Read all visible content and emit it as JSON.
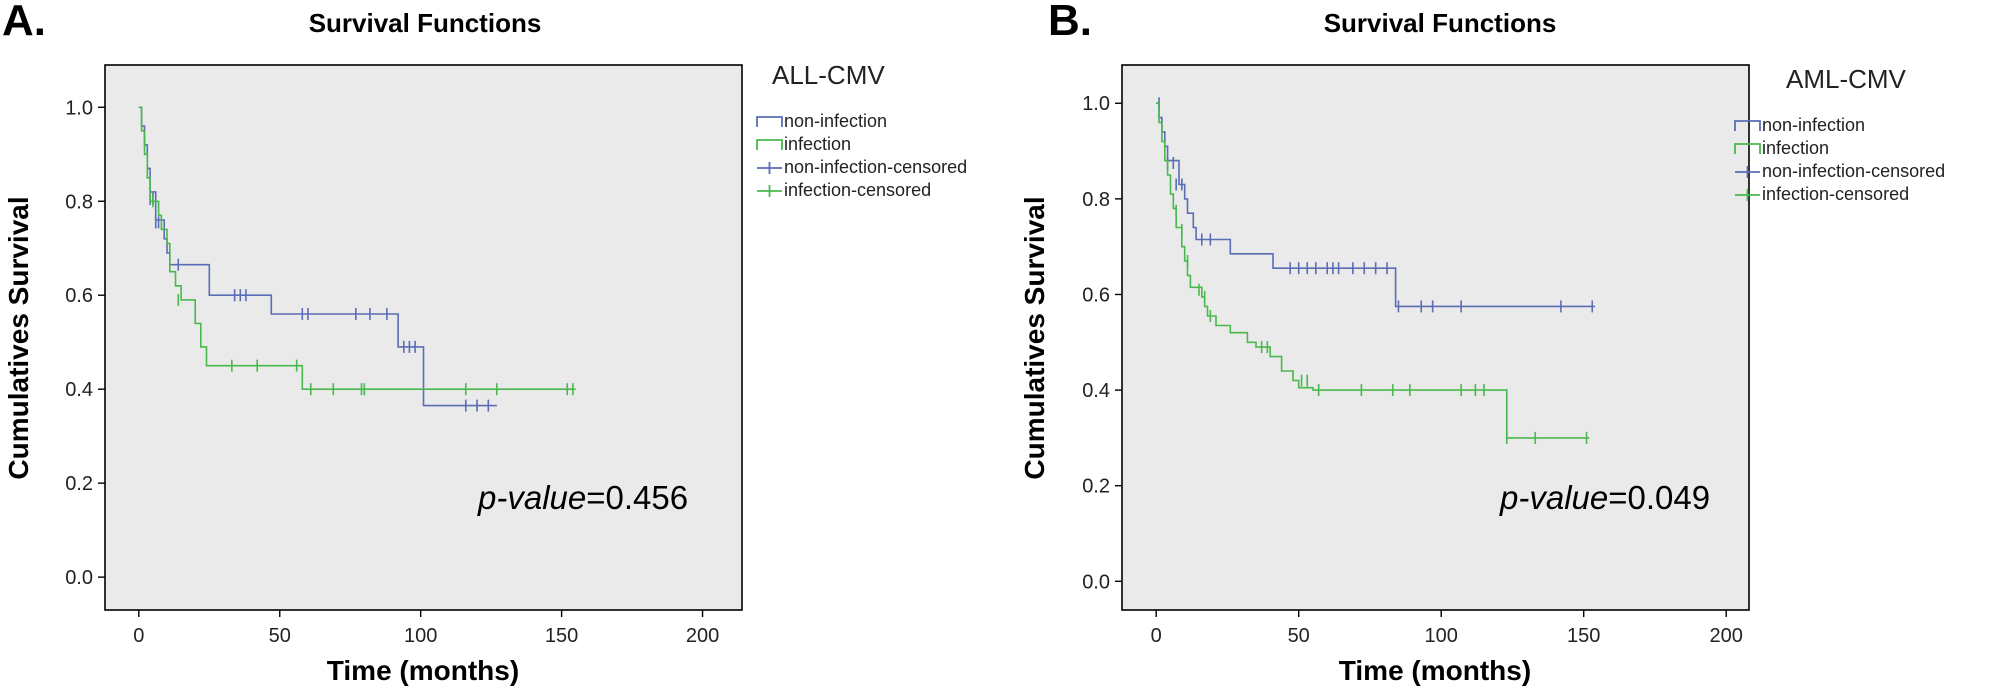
{
  "chart_data": [
    {
      "panel_label": "A.",
      "type": "line",
      "subtype": "kaplan-meier step",
      "title": "Survival Functions",
      "xlabel": "Time (months)",
      "ylabel": "Cumulatives Survival",
      "xlim": [
        -12,
        214
      ],
      "ylim": [
        -0.07,
        1.09
      ],
      "xticks": [
        0,
        50,
        100,
        150,
        200
      ],
      "xtick_labels": [
        "0",
        "50",
        "100",
        "150",
        "200"
      ],
      "yticks": [
        0.0,
        0.2,
        0.4,
        0.6,
        0.8,
        1.0
      ],
      "ytick_labels": [
        "0.0",
        "0.2",
        "0.4",
        "0.6",
        "0.8",
        "1.0"
      ],
      "grid": false,
      "plot_background": "#eaeaea",
      "legend": {
        "title": "ALL-CMV",
        "position": "right",
        "entries": [
          {
            "label": "non-infection",
            "kind": "line",
            "color": "#5a6db5"
          },
          {
            "label": "infection",
            "kind": "line",
            "color": "#49b94e"
          },
          {
            "label": "non-infection-censored",
            "kind": "censor",
            "color": "#5a6db5"
          },
          {
            "label": "infection-censored",
            "kind": "censor",
            "color": "#49b94e"
          }
        ]
      },
      "annotation": {
        "prefix": "p-value",
        "value": "=0.456"
      },
      "series": [
        {
          "name": "non-infection",
          "color": "#5a6db5",
          "steps": [
            [
              0,
              1.0
            ],
            [
              1,
              0.96
            ],
            [
              2,
              0.92
            ],
            [
              3,
              0.87
            ],
            [
              4,
              0.82
            ],
            [
              6,
              0.76
            ],
            [
              9,
              0.72
            ],
            [
              10,
              0.69
            ],
            [
              11,
              0.665
            ],
            [
              25,
              0.6
            ],
            [
              47,
              0.56
            ],
            [
              92,
              0.49
            ],
            [
              101,
              0.365
            ],
            [
              127,
              0.365
            ]
          ],
          "censored": [
            [
              4,
              0.805
            ],
            [
              5,
              0.805
            ],
            [
              6,
              0.755
            ],
            [
              7,
              0.755
            ],
            [
              14,
              0.665
            ],
            [
              34,
              0.6
            ],
            [
              36,
              0.6
            ],
            [
              38,
              0.6
            ],
            [
              58,
              0.56
            ],
            [
              60,
              0.56
            ],
            [
              77,
              0.56
            ],
            [
              82,
              0.56
            ],
            [
              88,
              0.56
            ],
            [
              94,
              0.49
            ],
            [
              96,
              0.49
            ],
            [
              98,
              0.49
            ],
            [
              116,
              0.365
            ],
            [
              120,
              0.365
            ],
            [
              124,
              0.365
            ]
          ]
        },
        {
          "name": "infection",
          "color": "#49b94e",
          "steps": [
            [
              0,
              1.0
            ],
            [
              1,
              0.95
            ],
            [
              2,
              0.9
            ],
            [
              3,
              0.85
            ],
            [
              4,
              0.8
            ],
            [
              7,
              0.77
            ],
            [
              8,
              0.74
            ],
            [
              10,
              0.71
            ],
            [
              11,
              0.65
            ],
            [
              13,
              0.62
            ],
            [
              15,
              0.59
            ],
            [
              20,
              0.54
            ],
            [
              22,
              0.49
            ],
            [
              24,
              0.45
            ],
            [
              58,
              0.4
            ],
            [
              155,
              0.4
            ]
          ],
          "censored": [
            [
              5,
              0.8
            ],
            [
              14,
              0.59
            ],
            [
              33,
              0.45
            ],
            [
              42,
              0.45
            ],
            [
              56,
              0.45
            ],
            [
              61,
              0.4
            ],
            [
              69,
              0.4
            ],
            [
              79,
              0.4
            ],
            [
              80,
              0.4
            ],
            [
              116,
              0.4
            ],
            [
              127,
              0.4
            ],
            [
              152,
              0.4
            ],
            [
              154,
              0.4
            ]
          ]
        }
      ]
    },
    {
      "panel_label": "B.",
      "type": "line",
      "subtype": "kaplan-meier step",
      "title": "Survival Functions",
      "xlabel": "Time (months)",
      "ylabel": "Cumulatives Survival",
      "xlim": [
        -12,
        208
      ],
      "ylim": [
        -0.06,
        1.08
      ],
      "xticks": [
        0,
        50,
        100,
        150,
        200
      ],
      "xtick_labels": [
        "0",
        "50",
        "100",
        "150",
        "200"
      ],
      "yticks": [
        0.0,
        0.2,
        0.4,
        0.6,
        0.8,
        1.0
      ],
      "ytick_labels": [
        "0.0",
        "0.2",
        "0.4",
        "0.6",
        "0.8",
        "1.0"
      ],
      "grid": false,
      "plot_background": "#eaeaea",
      "legend": {
        "title": "AML-CMV",
        "position": "right",
        "entries": [
          {
            "label": "non-infection",
            "kind": "line",
            "color": "#5a6db5"
          },
          {
            "label": "infection",
            "kind": "line",
            "color": "#49b94e"
          },
          {
            "label": "non-infection-censored",
            "kind": "censor",
            "color": "#5a6db5"
          },
          {
            "label": "infection-censored",
            "kind": "censor",
            "color": "#49b94e"
          }
        ]
      },
      "annotation": {
        "prefix": "p-value",
        "value": "=0.049"
      },
      "series": [
        {
          "name": "non-infection",
          "color": "#5a6db5",
          "steps": [
            [
              0,
              1.0
            ],
            [
              1,
              0.97
            ],
            [
              2,
              0.94
            ],
            [
              3,
              0.91
            ],
            [
              4,
              0.88
            ],
            [
              8,
              0.83
            ],
            [
              10,
              0.8
            ],
            [
              11,
              0.77
            ],
            [
              13,
              0.74
            ],
            [
              14,
              0.715
            ],
            [
              26,
              0.685
            ],
            [
              41,
              0.655
            ],
            [
              84,
              0.575
            ],
            [
              154,
              0.575
            ]
          ],
          "censored": [
            [
              1,
              1.0
            ],
            [
              4,
              0.875
            ],
            [
              6,
              0.875
            ],
            [
              7,
              0.83
            ],
            [
              9,
              0.83
            ],
            [
              16,
              0.715
            ],
            [
              19,
              0.715
            ],
            [
              47,
              0.655
            ],
            [
              50,
              0.655
            ],
            [
              53,
              0.655
            ],
            [
              56,
              0.655
            ],
            [
              60,
              0.655
            ],
            [
              62,
              0.655
            ],
            [
              64,
              0.655
            ],
            [
              69,
              0.655
            ],
            [
              73,
              0.655
            ],
            [
              77,
              0.655
            ],
            [
              81,
              0.655
            ],
            [
              85,
              0.575
            ],
            [
              93,
              0.575
            ],
            [
              97,
              0.575
            ],
            [
              107,
              0.575
            ],
            [
              142,
              0.575
            ],
            [
              153,
              0.575
            ]
          ]
        },
        {
          "name": "infection",
          "color": "#49b94e",
          "steps": [
            [
              0,
              1.0
            ],
            [
              1,
              0.96
            ],
            [
              2,
              0.92
            ],
            [
              3,
              0.88
            ],
            [
              4,
              0.85
            ],
            [
              5,
              0.81
            ],
            [
              6,
              0.78
            ],
            [
              7,
              0.74
            ],
            [
              9,
              0.7
            ],
            [
              10,
              0.67
            ],
            [
              11,
              0.64
            ],
            [
              12,
              0.615
            ],
            [
              16,
              0.595
            ],
            [
              17,
              0.575
            ],
            [
              18,
              0.555
            ],
            [
              21,
              0.535
            ],
            [
              26,
              0.52
            ],
            [
              32,
              0.5
            ],
            [
              35,
              0.49
            ],
            [
              40,
              0.47
            ],
            [
              44,
              0.44
            ],
            [
              48,
              0.42
            ],
            [
              50,
              0.405
            ],
            [
              55,
              0.4
            ],
            [
              123,
              0.3
            ],
            [
              152,
              0.3
            ]
          ],
          "censored": [
            [
              7,
              0.775
            ],
            [
              9,
              0.735
            ],
            [
              11,
              0.67
            ],
            [
              15,
              0.61
            ],
            [
              17,
              0.595
            ],
            [
              19,
              0.555
            ],
            [
              37,
              0.49
            ],
            [
              39,
              0.49
            ],
            [
              51,
              0.42
            ],
            [
              53,
              0.42
            ],
            [
              57,
              0.4
            ],
            [
              72,
              0.4
            ],
            [
              83,
              0.4
            ],
            [
              89,
              0.4
            ],
            [
              107,
              0.4
            ],
            [
              112,
              0.4
            ],
            [
              115,
              0.4
            ],
            [
              123,
              0.3
            ],
            [
              133,
              0.3
            ],
            [
              151,
              0.3
            ]
          ]
        }
      ]
    }
  ]
}
